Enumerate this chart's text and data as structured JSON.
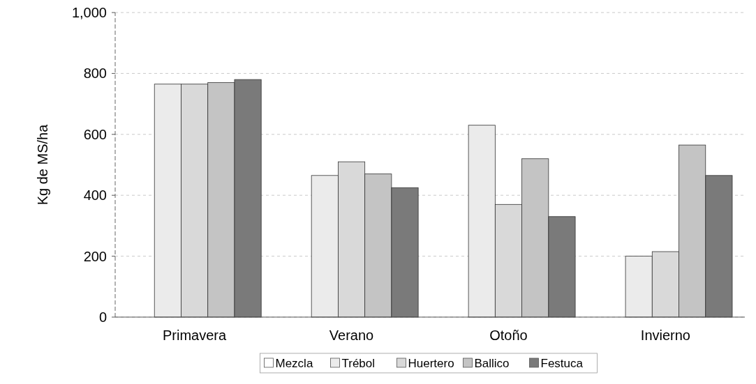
{
  "chart_data": {
    "type": "bar",
    "ylabel": "Kg de MS/ha",
    "categories": [
      "Primavera",
      "Verano",
      "Otoño",
      "Invierno"
    ],
    "series": [
      {
        "name": "Mezcla",
        "color": "#ffffff",
        "values": [
          0,
          0,
          0,
          0
        ]
      },
      {
        "name": "Trébol",
        "color": "#ebebeb",
        "values": [
          765,
          465,
          630,
          200
        ]
      },
      {
        "name": "Huertero",
        "color": "#d9d9d9",
        "values": [
          765,
          510,
          370,
          215
        ]
      },
      {
        "name": "Ballico",
        "color": "#c4c4c4",
        "values": [
          770,
          470,
          520,
          565
        ]
      },
      {
        "name": "Festuca",
        "color": "#7a7a7a",
        "values": [
          780,
          425,
          330,
          465
        ]
      }
    ],
    "ylim": [
      0,
      1000
    ],
    "yticks": [
      0,
      200,
      400,
      600,
      800,
      {
        "value": 1000,
        "label": "1,000"
      }
    ],
    "grid": "y",
    "legend": "bottom"
  }
}
